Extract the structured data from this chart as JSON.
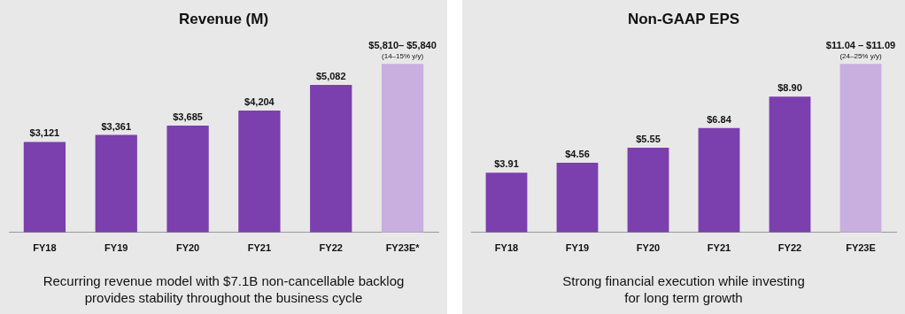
{
  "chart_data": [
    {
      "type": "bar",
      "title": "Revenue (M)",
      "categories": [
        "FY18",
        "FY19",
        "FY20",
        "FY21",
        "FY22",
        "FY23E*"
      ],
      "values": [
        3121,
        3361,
        3685,
        4204,
        5082,
        5810
      ],
      "colors": [
        "#7b3fae",
        "#7b3fae",
        "#7b3fae",
        "#7b3fae",
        "#7b3fae",
        "#c9afe0"
      ],
      "value_labels": [
        "$3,121",
        "$3,361",
        "$3,685",
        "$4,204",
        "$5,082",
        "$5,810– $5,840\n(14–15% y/y)"
      ],
      "annotations": [
        "Recurring revenue model with $7.1B non-cancellable backlog provides stability throughout the business cycle"
      ]
    },
    {
      "type": "bar",
      "title": "Non-GAAP EPS",
      "categories": [
        "FY18",
        "FY19",
        "FY20",
        "FY21",
        "FY22",
        "FY23E"
      ],
      "values": [
        3.91,
        4.56,
        5.55,
        6.84,
        8.9,
        11.04
      ],
      "colors": [
        "#7b3fae",
        "#7b3fae",
        "#7b3fae",
        "#7b3fae",
        "#7b3fae",
        "#c9afe0"
      ],
      "value_labels": [
        "$3.91",
        "$4.56",
        "$5.55",
        "$6.84",
        "$8.90",
        "$11.04 – $11.09\n(24–25% y/y)"
      ],
      "annotations": [
        "Strong financial execution while investing for long term growth"
      ]
    }
  ]
}
